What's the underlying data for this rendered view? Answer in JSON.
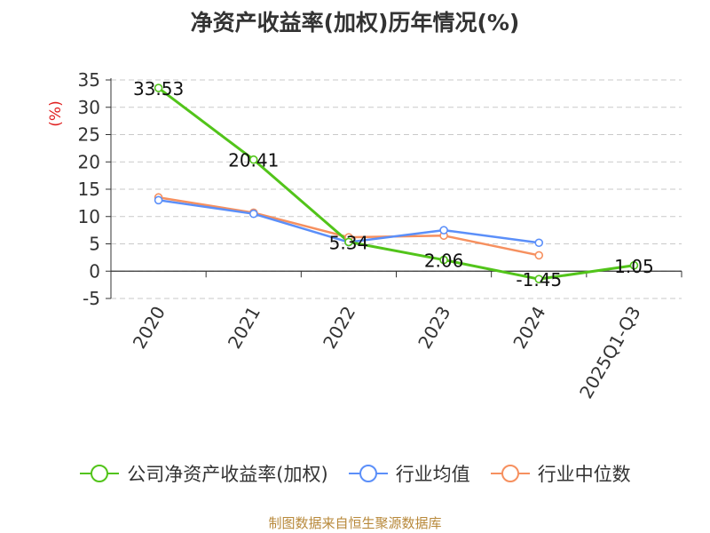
{
  "chart_data": {
    "type": "line",
    "title": "净资产收益率(加权)历年情况(%)",
    "ylabel": "(%)",
    "xlabel": "",
    "categories": [
      "2020",
      "2021",
      "2022",
      "2023",
      "2024",
      "2025Q1-Q3"
    ],
    "ylim": [
      -5,
      35
    ],
    "yticks": [
      "35",
      "30",
      "25",
      "20",
      "15",
      "10",
      "5",
      "0",
      "-5"
    ],
    "grid": true,
    "legend_position": "bottom",
    "series": [
      {
        "name": "公司净资产收益率(加权)",
        "color": "#52c41a",
        "values": [
          33.53,
          20.41,
          5.34,
          2.06,
          -1.45,
          1.05
        ],
        "data_labels": [
          "33.53",
          "20.41",
          "5.34",
          "2.06",
          "-1.45",
          "1.05"
        ]
      },
      {
        "name": "行业均值",
        "color": "#5b8ff9",
        "values": [
          13.0,
          10.5,
          5.3,
          7.5,
          5.2,
          null
        ]
      },
      {
        "name": "行业中位数",
        "color": "#f6905f",
        "values": [
          13.5,
          10.7,
          6.2,
          6.5,
          2.9,
          null
        ]
      }
    ]
  },
  "source": "制图数据来自恒生聚源数据库"
}
